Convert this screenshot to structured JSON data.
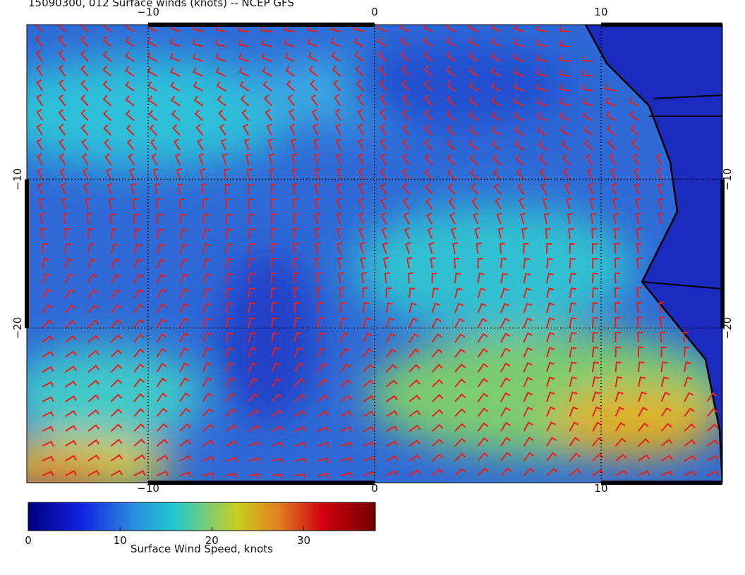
{
  "title": "15090300, 012 Surface winds (knots) -- NCEP GFS",
  "map": {
    "xlim": [
      -15.36,
      15.36
    ],
    "ylim": [
      -30.4,
      0.4
    ],
    "xticks": [
      {
        "value": -10,
        "label": "−10"
      },
      {
        "value": 0,
        "label": "0"
      },
      {
        "value": 10,
        "label": "10"
      }
    ],
    "yticks": [
      {
        "value": -10,
        "label": "−10"
      },
      {
        "value": -20,
        "label": "−20"
      }
    ]
  },
  "colorbar": {
    "label": "Surface Wind Speed, knots",
    "lim": [
      0,
      37.8
    ],
    "ticks": [
      0,
      10,
      20,
      30
    ]
  }
}
